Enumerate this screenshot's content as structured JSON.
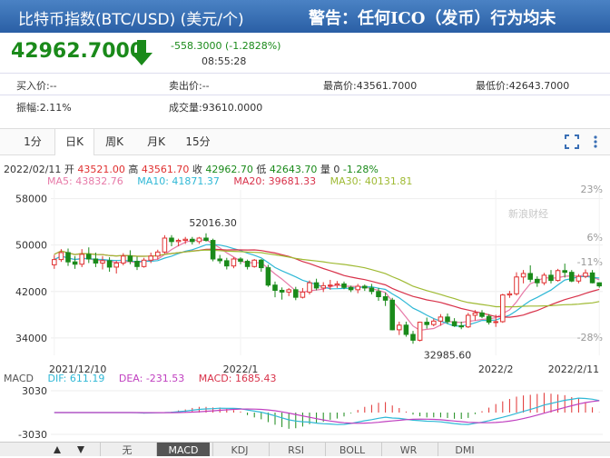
{
  "header": {
    "title": "比特币指数(BTC/USD) (美元/个)",
    "warning": "警告：任何ICO（发币）行为均未"
  },
  "quote": {
    "price": "42962.7000",
    "change": "-558.3000 (-1.2828%)",
    "time": "08:55:28"
  },
  "info": {
    "bid": "买入价:--",
    "ask": "卖出价:--",
    "high": "最高价:43561.7000",
    "low": "最低价:42643.7000",
    "amplitude": "振幅:2.11%",
    "volume": "成交量:93610.0000"
  },
  "tabs": [
    "1分",
    "日K",
    "周K",
    "月K",
    "15分"
  ],
  "active_tab": "日K",
  "ohlc_line": {
    "date": "2022/02/11",
    "open_label": "开",
    "open": "43521.00",
    "high_label": "高",
    "high": "43561.70",
    "close_label": "收",
    "close": "42962.70",
    "low_label": "低",
    "low": "42643.70",
    "vol_label": "量",
    "vol": "0",
    "pct": "-1.28%"
  },
  "ma": {
    "ma5": "MA5: 43832.76",
    "ma10": "MA10: 41871.37",
    "ma20": "MA20: 39681.33",
    "ma30": "MA30: 40131.81"
  },
  "watermark": "新浪财经",
  "macd": {
    "label": "MACD",
    "dif": "DIF: 611.19",
    "dea": "DEA: -231.53",
    "macd": "MACD: 1685.43",
    "ymax": "3030",
    "ymin": "-3030"
  },
  "bottom_tabs": [
    "无",
    "MACD",
    "KDJ",
    "RSI",
    "BOLL",
    "WR",
    "DMI"
  ],
  "active_bottom_tab": "MACD",
  "colors": {
    "up": "#e03030",
    "down": "#1a8a1a",
    "ma5": "#e77aa8",
    "ma10": "#2fb8d6",
    "ma20": "#d8324a",
    "ma30": "#9fba33"
  },
  "chart_data": {
    "type": "candlestick",
    "y_ticks": [
      "58000",
      "50000",
      "42000",
      "34000"
    ],
    "y_right_ticks": [
      "23%",
      "6%",
      "-11%",
      "-28%"
    ],
    "x_labels": [
      "2021/12/10",
      "2022/1",
      "2022/2",
      "2022/2/11"
    ],
    "annotations": [
      {
        "text": "52016.30",
        "x_index": 23,
        "value": 52016.3
      },
      {
        "text": "32985.60",
        "x_index": 57,
        "value": 32985.6
      }
    ],
    "ylim": [
      31000,
      59500
    ],
    "candles": [
      [
        46600,
        48300,
        45900,
        47500
      ],
      [
        47500,
        49300,
        47100,
        48700
      ],
      [
        48700,
        49400,
        46400,
        47100
      ],
      [
        47100,
        48100,
        45900,
        46700
      ],
      [
        46700,
        49300,
        46200,
        48400
      ],
      [
        48400,
        49600,
        46900,
        47600
      ],
      [
        47600,
        48700,
        46200,
        46900
      ],
      [
        46900,
        48100,
        45800,
        47300
      ],
      [
        47300,
        47900,
        45400,
        46200
      ],
      [
        46200,
        47300,
        45100,
        46900
      ],
      [
        46900,
        48600,
        46500,
        48100
      ],
      [
        48100,
        49100,
        46700,
        47200
      ],
      [
        47200,
        48000,
        45700,
        46300
      ],
      [
        46300,
        47800,
        46100,
        47400
      ],
      [
        47400,
        48700,
        46900,
        48100
      ],
      [
        48100,
        49200,
        47500,
        48800
      ],
      [
        48800,
        51700,
        48500,
        51200
      ],
      [
        51200,
        51700,
        49800,
        50600
      ],
      [
        50600,
        51100,
        49800,
        50800
      ],
      [
        50800,
        51400,
        50200,
        51000
      ],
      [
        51000,
        51400,
        50100,
        50600
      ],
      [
        50600,
        51400,
        50200,
        51200
      ],
      [
        51200,
        52016,
        50600,
        50800
      ],
      [
        50800,
        51100,
        47200,
        47600
      ],
      [
        47600,
        48300,
        46800,
        47300
      ],
      [
        47300,
        47800,
        45800,
        46400
      ],
      [
        46400,
        47900,
        46000,
        47600
      ],
      [
        47600,
        47900,
        46700,
        47200
      ],
      [
        47200,
        47500,
        45800,
        46300
      ],
      [
        46300,
        47600,
        46100,
        47400
      ],
      [
        47400,
        47600,
        45400,
        46100
      ],
      [
        46100,
        46600,
        42800,
        43100
      ],
      [
        43100,
        43700,
        41000,
        42200
      ],
      [
        42200,
        42700,
        40600,
        41900
      ],
      [
        41900,
        42600,
        41200,
        42300
      ],
      [
        42300,
        42800,
        40500,
        41000
      ],
      [
        41000,
        42600,
        40800,
        41900
      ],
      [
        41900,
        43900,
        41500,
        43500
      ],
      [
        43500,
        44200,
        42200,
        42600
      ],
      [
        42600,
        43600,
        41900,
        43000
      ],
      [
        43000,
        44000,
        42300,
        43100
      ],
      [
        43100,
        43800,
        42600,
        43300
      ],
      [
        43300,
        43700,
        42400,
        42700
      ],
      [
        42700,
        43000,
        41900,
        42300
      ],
      [
        42300,
        43300,
        41700,
        42900
      ],
      [
        42900,
        43200,
        42100,
        42600
      ],
      [
        42600,
        43300,
        41500,
        42000
      ],
      [
        42000,
        42600,
        40400,
        41100
      ],
      [
        41100,
        41800,
        39500,
        40500
      ],
      [
        40500,
        40900,
        35300,
        35400
      ],
      [
        35400,
        36800,
        34500,
        36200
      ],
      [
        36200,
        36800,
        34200,
        34600
      ],
      [
        34600,
        35200,
        33000,
        33600
      ],
      [
        33600,
        36800,
        33400,
        36700
      ],
      [
        36700,
        37500,
        35600,
        36300
      ],
      [
        36300,
        37300,
        36000,
        36900
      ],
      [
        36900,
        38100,
        36100,
        37600
      ],
      [
        37600,
        38200,
        36400,
        36800
      ],
      [
        36800,
        37400,
        35900,
        36100
      ],
      [
        36100,
        36800,
        35500,
        35900
      ],
      [
        35900,
        38300,
        35700,
        37900
      ],
      [
        37900,
        38800,
        37000,
        38300
      ],
      [
        38300,
        38800,
        37400,
        37700
      ],
      [
        37700,
        38100,
        36300,
        36700
      ],
      [
        36700,
        38000,
        35900,
        36800
      ],
      [
        36800,
        41600,
        36600,
        41400
      ],
      [
        41400,
        42100,
        40900,
        41600
      ],
      [
        41600,
        45300,
        41300,
        44500
      ],
      [
        44500,
        45700,
        43400,
        45100
      ],
      [
        45100,
        46500,
        43600,
        44100
      ],
      [
        44100,
        44600,
        42800,
        43500
      ],
      [
        43500,
        45200,
        43100,
        44800
      ],
      [
        44800,
        45700,
        43400,
        43900
      ],
      [
        43900,
        45900,
        43700,
        45600
      ],
      [
        45600,
        46800,
        44400,
        45300
      ],
      [
        45300,
        45700,
        43600,
        43800
      ],
      [
        43800,
        45000,
        43400,
        44600
      ],
      [
        44600,
        45800,
        44300,
        45200
      ],
      [
        45200,
        45700,
        43400,
        43500
      ],
      [
        43500,
        43562,
        42644,
        42963
      ]
    ]
  }
}
